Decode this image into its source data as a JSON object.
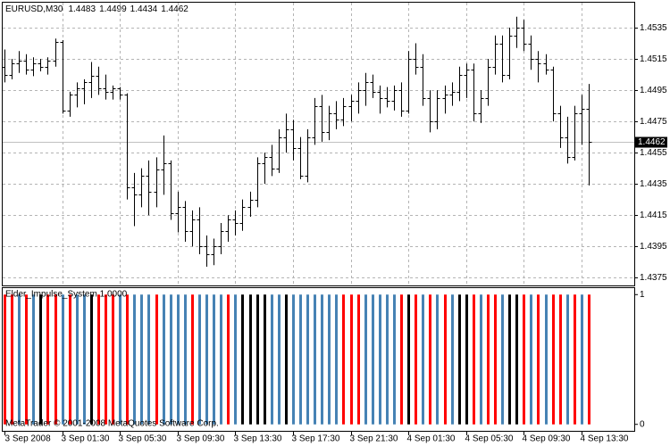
{
  "chart_data": [
    {
      "type": "ohlc",
      "title": "EURUSD,M30",
      "open": [
        1.451,
        1.4505,
        1.4512,
        1.4514,
        1.4508,
        1.4512,
        1.451,
        1.4514,
        1.4526,
        1.4482,
        1.4492,
        1.4496,
        1.45,
        1.4504,
        1.4496,
        1.4494,
        1.4496,
        1.4492,
        1.4433,
        1.4428,
        1.444,
        1.443,
        1.4444,
        1.4448,
        1.4416,
        1.442,
        1.4405,
        1.4412,
        1.4395,
        1.439,
        1.4395,
        1.4405,
        1.4412,
        1.441,
        1.442,
        1.4425,
        1.4448,
        1.4452,
        1.4445,
        1.4465,
        1.447,
        1.4458,
        1.444,
        1.4465,
        1.4485,
        1.4468,
        1.448,
        1.4476,
        1.4485,
        1.4488,
        1.4495,
        1.45,
        1.4494,
        1.449,
        1.4488,
        1.4495,
        1.4482,
        1.4515,
        1.451,
        1.449,
        1.4475,
        1.449,
        1.4492,
        1.4494,
        1.4505,
        1.4508,
        1.448,
        1.449,
        1.451,
        1.4525,
        1.4505,
        1.453,
        1.4535,
        1.4525,
        1.4515,
        1.4512,
        1.4508,
        1.448,
        1.4465,
        1.4452,
        1.448,
        1.4483
      ],
      "high": [
        1.4521,
        1.4515,
        1.452,
        1.4518,
        1.4516,
        1.4515,
        1.4516,
        1.4528,
        1.4527,
        1.4494,
        1.45,
        1.4502,
        1.4513,
        1.451,
        1.4505,
        1.4498,
        1.4497,
        1.4493,
        1.4442,
        1.4445,
        1.445,
        1.4452,
        1.4466,
        1.445,
        1.443,
        1.4424,
        1.4418,
        1.442,
        1.4402,
        1.44,
        1.441,
        1.4415,
        1.4418,
        1.4425,
        1.443,
        1.4452,
        1.4455,
        1.446,
        1.447,
        1.448,
        1.4476,
        1.4465,
        1.447,
        1.449,
        1.4492,
        1.4485,
        1.4488,
        1.449,
        1.4492,
        1.45,
        1.4506,
        1.4505,
        1.4498,
        1.4497,
        1.4498,
        1.45,
        1.452,
        1.4525,
        1.4518,
        1.4495,
        1.4495,
        1.4498,
        1.45,
        1.451,
        1.4512,
        1.4512,
        1.4495,
        1.4515,
        1.453,
        1.453,
        1.4535,
        1.4542,
        1.454,
        1.453,
        1.452,
        1.4518,
        1.451,
        1.4485,
        1.4478,
        1.4485,
        1.4492,
        1.4499
      ],
      "low": [
        1.45,
        1.4502,
        1.4506,
        1.4505,
        1.4504,
        1.4507,
        1.4505,
        1.451,
        1.448,
        1.4478,
        1.4484,
        1.4486,
        1.449,
        1.4492,
        1.4489,
        1.4489,
        1.4489,
        1.4425,
        1.4408,
        1.442,
        1.4415,
        1.442,
        1.4428,
        1.4412,
        1.4404,
        1.4398,
        1.4395,
        1.439,
        1.4382,
        1.4383,
        1.439,
        1.4398,
        1.4402,
        1.4405,
        1.4414,
        1.442,
        1.4435,
        1.444,
        1.4442,
        1.4455,
        1.445,
        1.4438,
        1.4436,
        1.446,
        1.4462,
        1.4463,
        1.447,
        1.4472,
        1.4475,
        1.448,
        1.4485,
        1.449,
        1.448,
        1.4484,
        1.4482,
        1.4478,
        1.448,
        1.4505,
        1.4485,
        1.4468,
        1.447,
        1.448,
        1.4485,
        1.4488,
        1.449,
        1.4475,
        1.4474,
        1.4485,
        1.4505,
        1.45,
        1.4502,
        1.4522,
        1.452,
        1.4508,
        1.45,
        1.4505,
        1.4475,
        1.4458,
        1.4448,
        1.445,
        1.446,
        1.4434
      ],
      "close": [
        1.4505,
        1.4512,
        1.4514,
        1.4508,
        1.4512,
        1.451,
        1.4514,
        1.4526,
        1.4482,
        1.4492,
        1.4496,
        1.45,
        1.4504,
        1.4496,
        1.4494,
        1.4496,
        1.4492,
        1.4433,
        1.4428,
        1.444,
        1.443,
        1.4444,
        1.4448,
        1.4416,
        1.442,
        1.4405,
        1.4412,
        1.4395,
        1.439,
        1.4395,
        1.4405,
        1.4412,
        1.441,
        1.442,
        1.4425,
        1.4448,
        1.4452,
        1.4445,
        1.4465,
        1.447,
        1.4458,
        1.444,
        1.4465,
        1.4485,
        1.4468,
        1.448,
        1.4476,
        1.4485,
        1.4488,
        1.4495,
        1.45,
        1.4494,
        1.449,
        1.4488,
        1.4495,
        1.4482,
        1.4515,
        1.451,
        1.449,
        1.4475,
        1.449,
        1.4492,
        1.4494,
        1.4505,
        1.4508,
        1.448,
        1.449,
        1.451,
        1.4525,
        1.4505,
        1.453,
        1.4535,
        1.4525,
        1.4515,
        1.4512,
        1.4508,
        1.448,
        1.4465,
        1.4452,
        1.448,
        1.4483,
        1.4462
      ],
      "color": "#000000",
      "xlim": [
        0,
        81
      ],
      "xticks": [
        {
          "value": 0,
          "label": "3 Sep 2008"
        },
        {
          "value": 8,
          "label": "3 Sep 01:30"
        },
        {
          "value": 16,
          "label": "3 Sep 05:30"
        },
        {
          "value": 24,
          "label": "3 Sep 09:30"
        },
        {
          "value": 32,
          "label": "3 Sep 13:30"
        },
        {
          "value": 40,
          "label": "3 Sep 17:30"
        },
        {
          "value": 48,
          "label": "3 Sep 21:30"
        },
        {
          "value": 56,
          "label": "4 Sep 01:30"
        },
        {
          "value": 64,
          "label": "4 Sep 05:30"
        },
        {
          "value": 72,
          "label": "4 Sep 09:30"
        },
        {
          "value": 80,
          "label": "4 Sep 13:30"
        }
      ],
      "ylim": [
        1.437,
        1.4551
      ],
      "yticks": [
        1.4535,
        1.4515,
        1.4495,
        1.4475,
        1.4455,
        1.4435,
        1.4415,
        1.4395,
        1.4375
      ],
      "grid": true
    },
    {
      "type": "bar",
      "title": "Elder_Impulse_System 1.0000",
      "watermark": "MetaTrader © 2001-2008 MetaQuotes Software Corp.",
      "values": [
        1,
        1,
        1,
        1,
        1,
        1,
        1,
        1,
        1,
        1,
        1,
        1,
        1,
        1,
        1,
        1,
        1,
        1,
        1,
        1,
        1,
        1,
        1,
        1,
        1,
        1,
        1,
        1,
        1,
        1,
        1,
        1,
        1,
        1,
        1,
        1,
        1,
        1,
        1,
        1,
        1,
        1,
        1,
        1,
        1,
        1,
        1,
        1,
        1,
        1,
        1,
        1,
        1,
        1,
        1,
        1,
        1,
        1,
        1,
        1,
        1,
        1,
        1,
        1,
        1,
        1,
        1,
        1,
        1,
        1,
        1,
        1,
        1,
        1,
        1,
        1,
        1,
        1,
        1,
        1,
        1,
        1
      ],
      "colors": [
        "#ff0000",
        "#ff0000",
        "#4682b4",
        "#ff0000",
        "#4682b4",
        "#000000",
        "#ff0000",
        "#ff0000",
        "#4682b4",
        "#ff0000",
        "#4682b4",
        "#4682b4",
        "#000000",
        "#ff0000",
        "#ff0000",
        "#ff0000",
        "#4682b4",
        "#ff0000",
        "#4682b4",
        "#4682b4",
        "#4682b4",
        "#ff0000",
        "#4682b4",
        "#4682b4",
        "#4682b4",
        "#4682b4",
        "#ff0000",
        "#4682b4",
        "#4682b4",
        "#4682b4",
        "#4682b4",
        "#ff0000",
        "#4682b4",
        "#000000",
        "#000000",
        "#000000",
        "#000000",
        "#4682b4",
        "#4682b4",
        "#000000",
        "#4682b4",
        "#4682b4",
        "#4682b4",
        "#4682b4",
        "#4682b4",
        "#4682b4",
        "#4682b4",
        "#ff0000",
        "#ff0000",
        "#ff0000",
        "#4682b4",
        "#4682b4",
        "#4682b4",
        "#4682b4",
        "#4682b4",
        "#ff0000",
        "#000000",
        "#ff0000",
        "#4682b4",
        "#ff0000",
        "#4682b4",
        "#ff0000",
        "#4682b4",
        "#000000",
        "#000000",
        "#ff0000",
        "#4682b4",
        "#ff0000",
        "#ff0000",
        "#4682b4",
        "#000000",
        "#000000",
        "#ff0000",
        "#4682b4",
        "#ff0000",
        "#4682b4",
        "#ff0000",
        "#ff0000",
        "#4682b4",
        "#ff0000",
        "#4682b4",
        "#ff0000"
      ],
      "ylim": [
        -0.05,
        1.05
      ],
      "yticks": [
        1,
        0
      ]
    }
  ]
}
